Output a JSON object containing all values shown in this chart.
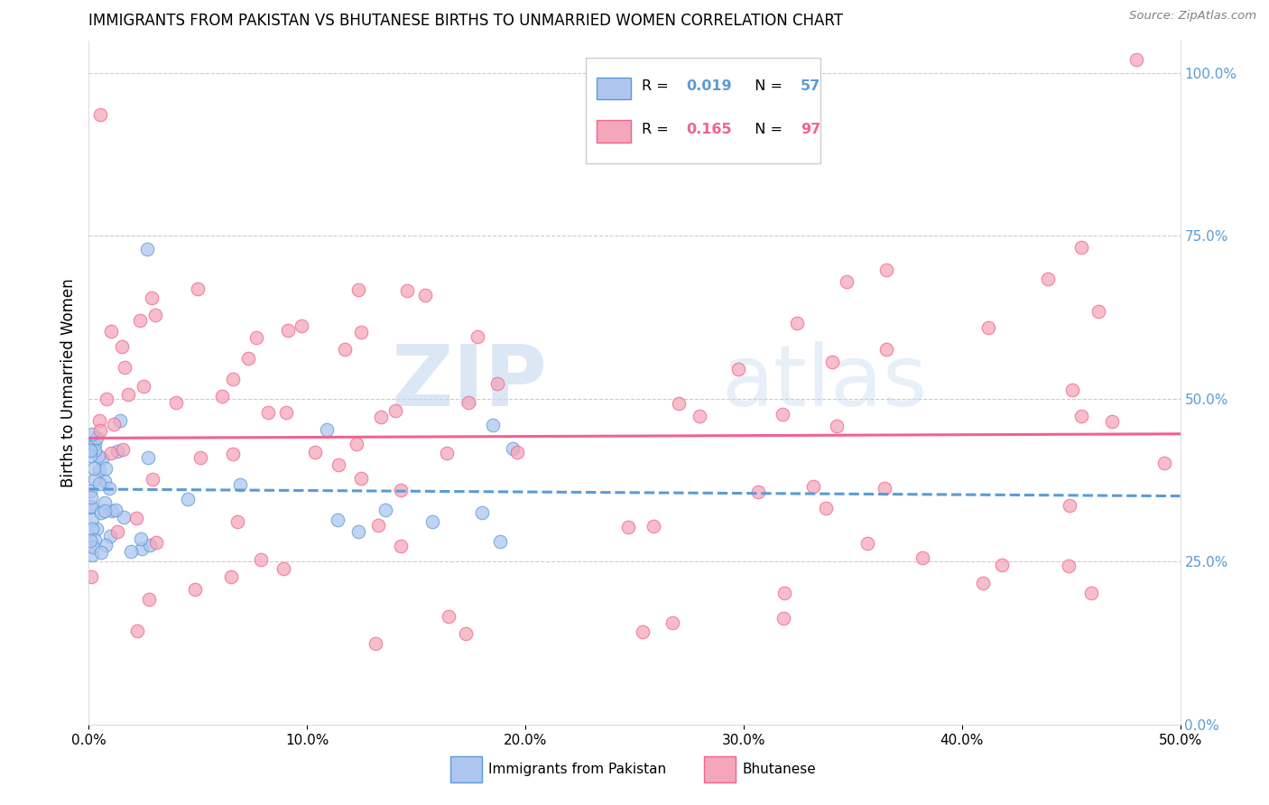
{
  "title": "IMMIGRANTS FROM PAKISTAN VS BHUTANESE BIRTHS TO UNMARRIED WOMEN CORRELATION CHART",
  "source": "Source: ZipAtlas.com",
  "ylabel": "Births to Unmarried Women",
  "right_ytick_vals": [
    0.0,
    0.25,
    0.5,
    0.75,
    1.0
  ],
  "xlim": [
    0.0,
    0.5
  ],
  "ylim": [
    0.0,
    1.05
  ],
  "color_pakistan": "#aec6f0",
  "color_bhutanese": "#f4a7b9",
  "color_pakistan_line": "#5b9bd5",
  "color_bhutanese_line": "#f06292",
  "color_right_axis": "#5b9bd5",
  "watermark_zip": "ZIP",
  "watermark_atlas": "atlas",
  "legend_r1": "0.019",
  "legend_n1": "57",
  "legend_r2": "0.165",
  "legend_n2": "97",
  "seed": 42
}
